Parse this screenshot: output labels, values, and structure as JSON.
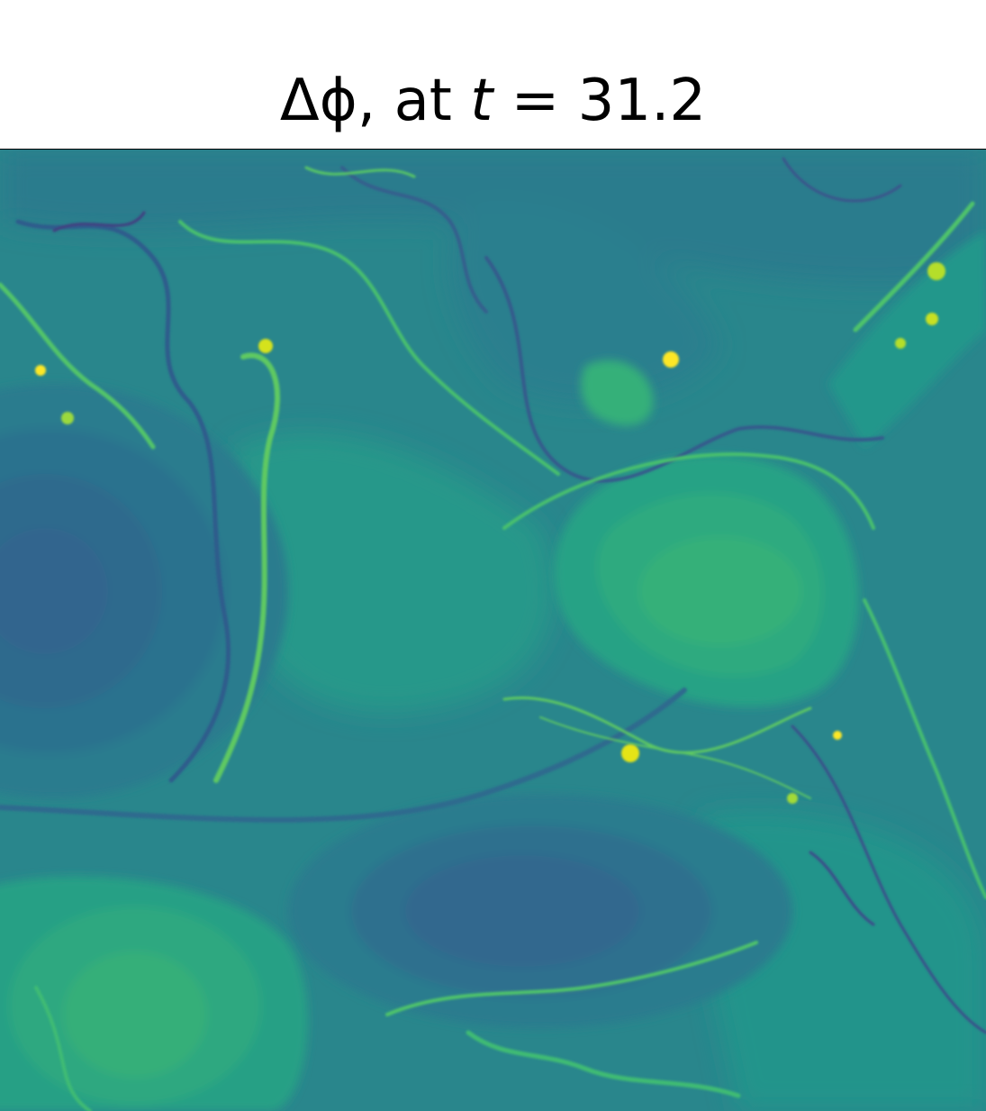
{
  "chart_data": {
    "type": "heatmap",
    "title": {
      "prefix": "Δϕ, at ",
      "time_symbol": "t",
      "equals": " = ",
      "time_value": "31.2"
    },
    "time": 31.2,
    "colormap": {
      "name": "viridis",
      "stops": [
        "#440154",
        "#3b528b",
        "#21918c",
        "#5ec962",
        "#fde725"
      ]
    },
    "axes": {
      "ticks": "none",
      "colorbar": "none"
    },
    "features": [
      {
        "kind": "vortex",
        "sign": "low",
        "level": 0.25,
        "location": "left-middle"
      },
      {
        "kind": "vortex",
        "sign": "high",
        "level": 0.66,
        "location": "right-middle"
      },
      {
        "kind": "vortex",
        "sign": "low",
        "level": 0.28,
        "location": "bottom-center"
      },
      {
        "kind": "vortex",
        "sign": "high",
        "level": 0.62,
        "location": "bottom-left"
      },
      {
        "kind": "filaments",
        "levels": [
          0.1,
          0.95
        ],
        "location": "shear-layers-throughout"
      }
    ]
  }
}
